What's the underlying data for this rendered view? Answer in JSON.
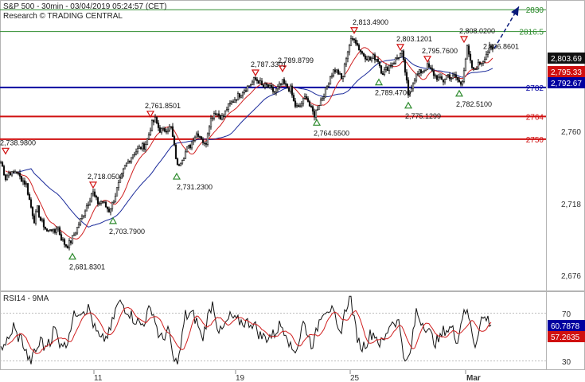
{
  "header": {
    "title": "S&P 500 - 30min - 03/04/2019 05:24:57 (CET)",
    "source": "Research © TRADING CENTRAL"
  },
  "chart_data": [
    {
      "type": "candlestick",
      "ylim": [
        2658,
        2836
      ],
      "y_ticks": [
        "2,760",
        "2,718",
        "2,676"
      ],
      "x_ticks": [
        "11",
        "19",
        "25",
        "Mar"
      ],
      "price_path": [
        [
          0,
          2737
        ],
        [
          3,
          2733
        ],
        [
          7,
          2726
        ],
        [
          12,
          2730
        ],
        [
          16,
          2728
        ],
        [
          20,
          2731
        ],
        [
          24,
          2727
        ],
        [
          28,
          2725
        ],
        [
          33,
          2722
        ],
        [
          38,
          2710
        ],
        [
          43,
          2700
        ],
        [
          47,
          2707
        ],
        [
          51,
          2700
        ],
        [
          55,
          2697
        ],
        [
          60,
          2692
        ],
        [
          64,
          2696
        ],
        [
          68,
          2691
        ],
        [
          72,
          2697
        ],
        [
          76,
          2690
        ],
        [
          80,
          2686
        ],
        [
          84,
          2684
        ],
        [
          88,
          2686
        ],
        [
          92,
          2690
        ],
        [
          96,
          2694
        ],
        [
          100,
          2699
        ],
        [
          104,
          2703
        ],
        [
          108,
          2708
        ],
        [
          112,
          2712
        ],
        [
          116,
          2718
        ],
        [
          120,
          2713
        ],
        [
          124,
          2710
        ],
        [
          128,
          2712
        ],
        [
          132,
          2709
        ],
        [
          137,
          2706
        ],
        [
          142,
          2711
        ],
        [
          147,
          2719
        ],
        [
          152,
          2726
        ],
        [
          157,
          2733
        ],
        [
          162,
          2737
        ],
        [
          167,
          2741
        ],
        [
          172,
          2743
        ],
        [
          177,
          2745
        ],
        [
          182,
          2746
        ],
        [
          186,
          2751
        ],
        [
          190,
          2759
        ],
        [
          195,
          2762
        ],
        [
          200,
          2756
        ],
        [
          205,
          2755
        ],
        [
          210,
          2757
        ],
        [
          215,
          2757
        ],
        [
          219,
          2745
        ],
        [
          223,
          2733
        ],
        [
          227,
          2737
        ],
        [
          231,
          2740
        ],
        [
          235,
          2744
        ],
        [
          239,
          2746
        ],
        [
          243,
          2751
        ],
        [
          248,
          2754
        ],
        [
          253,
          2751
        ],
        [
          258,
          2745
        ],
        [
          262,
          2758
        ],
        [
          266,
          2764
        ],
        [
          270,
          2767
        ],
        [
          275,
          2765
        ],
        [
          280,
          2763
        ],
        [
          285,
          2769
        ],
        [
          290,
          2772
        ],
        [
          295,
          2775
        ],
        [
          300,
          2777
        ],
        [
          305,
          2780
        ],
        [
          310,
          2782
        ],
        [
          315,
          2784
        ],
        [
          320,
          2787
        ],
        [
          325,
          2786
        ],
        [
          330,
          2782
        ],
        [
          335,
          2783
        ],
        [
          340,
          2781
        ],
        [
          345,
          2779
        ],
        [
          350,
          2782
        ],
        [
          355,
          2785
        ],
        [
          360,
          2782
        ],
        [
          365,
          2781
        ],
        [
          370,
          2771
        ],
        [
          375,
          2769
        ],
        [
          380,
          2773
        ],
        [
          385,
          2777
        ],
        [
          390,
          2769
        ],
        [
          395,
          2765
        ],
        [
          400,
          2771
        ],
        [
          405,
          2776
        ],
        [
          410,
          2781
        ],
        [
          415,
          2789
        ],
        [
          420,
          2793
        ],
        [
          425,
          2791
        ],
        [
          430,
          2786
        ],
        [
          435,
          2801
        ],
        [
          440,
          2810
        ],
        [
          445,
          2813
        ],
        [
          450,
          2807
        ],
        [
          455,
          2803
        ],
        [
          460,
          2801
        ],
        [
          465,
          2799
        ],
        [
          470,
          2801
        ],
        [
          475,
          2799
        ],
        [
          480,
          2791
        ],
        [
          485,
          2793
        ],
        [
          490,
          2796
        ],
        [
          495,
          2798
        ],
        [
          500,
          2801
        ],
        [
          505,
          2803
        ],
        [
          510,
          2789
        ],
        [
          513,
          2776
        ],
        [
          517,
          2783
        ],
        [
          522,
          2789
        ],
        [
          527,
          2791
        ],
        [
          532,
          2793
        ],
        [
          537,
          2795
        ],
        [
          542,
          2792
        ],
        [
          547,
          2789
        ],
        [
          552,
          2787
        ],
        [
          557,
          2786
        ],
        [
          562,
          2790
        ],
        [
          567,
          2788
        ],
        [
          572,
          2789
        ],
        [
          577,
          2785
        ],
        [
          580,
          2784
        ],
        [
          584,
          2797
        ],
        [
          587,
          2806
        ],
        [
          591,
          2797
        ],
        [
          595,
          2792
        ],
        [
          599,
          2795
        ],
        [
          603,
          2797
        ],
        [
          607,
          2799
        ],
        [
          611,
          2803
        ],
        [
          615,
          2806
        ],
        [
          619,
          2805
        ]
      ],
      "levels": [
        {
          "label": "2830",
          "value": 2830,
          "color": "#2e8b2e",
          "width": 1
        },
        {
          "label": "2816.5",
          "value": 2816.5,
          "color": "#2e8b2e",
          "width": 1
        },
        {
          "label": "2782",
          "value": 2782,
          "color": "#0000a0",
          "width": 2
        },
        {
          "label": "2764",
          "value": 2764,
          "color": "#d01010",
          "width": 2
        },
        {
          "label": "2750",
          "value": 2750,
          "color": "#d01010",
          "width": 2
        }
      ],
      "extrema": [
        {
          "label": "2,738.9800",
          "type": "high",
          "value": 2738.98
        },
        {
          "label": "2,681.8301",
          "type": "low",
          "value": 2681.83
        },
        {
          "label": "2,718.0500",
          "type": "high",
          "value": 2718.05
        },
        {
          "label": "2,703.7900",
          "type": "low",
          "value": 2703.79
        },
        {
          "label": "2,761.8501",
          "type": "high",
          "value": 2761.85
        },
        {
          "label": "2,731.2300",
          "type": "low",
          "value": 2731.23
        },
        {
          "label": "2,787.3301",
          "type": "high",
          "value": 2787.33
        },
        {
          "label": "2,789.8799",
          "type": "high",
          "value": 2789.88
        },
        {
          "label": "2,764.5500",
          "type": "low",
          "value": 2764.55
        },
        {
          "label": "2,813.4900",
          "type": "high",
          "value": 2813.49
        },
        {
          "label": "2,789.4700",
          "type": "low",
          "value": 2789.47
        },
        {
          "label": "2,803.1201",
          "type": "high",
          "value": 2803.12
        },
        {
          "label": "2,775.1299",
          "type": "low",
          "value": 2775.13
        },
        {
          "label": "2,795.7600",
          "type": "high",
          "value": 2795.76
        },
        {
          "label": "2,782.5100",
          "type": "low",
          "value": 2782.51
        },
        {
          "label": "2,808.0200",
          "type": "high",
          "value": 2808.02
        },
        {
          "label": "2,806.8601",
          "type": "high",
          "value": 2806.86
        }
      ],
      "price_badges": [
        {
          "label": "2,803.69",
          "value": 2803.69,
          "bg": "#111111",
          "fg": "#ffffff"
        },
        {
          "label": "2,795.33",
          "value": 2795.33,
          "bg": "#d01010",
          "fg": "#ffffff"
        },
        {
          "label": "2,792.67",
          "value": 2792.67,
          "bg": "#0000a0",
          "fg": "#ffffff"
        }
      ],
      "colors": {
        "ma_fast": "#d02020",
        "ma_slow": "#1a2a9a",
        "up_marker": "#2e8b2e",
        "down_marker": "#d01010",
        "arrow": "#0a1a7a"
      }
    },
    {
      "type": "line",
      "title": "RSI14 - 9MA",
      "ylim": [
        20,
        80
      ],
      "y_ticks": [
        "70",
        "30"
      ],
      "rsi_badges": [
        {
          "label": "60.7878",
          "value": 60.79,
          "bg": "#0000a0",
          "fg": "#ffffff"
        },
        {
          "label": "57.2635",
          "value": 57.26,
          "bg": "#d01010",
          "fg": "#ffffff"
        }
      ],
      "colors": {
        "rsi": "#111111",
        "ma": "#d02020"
      }
    }
  ]
}
